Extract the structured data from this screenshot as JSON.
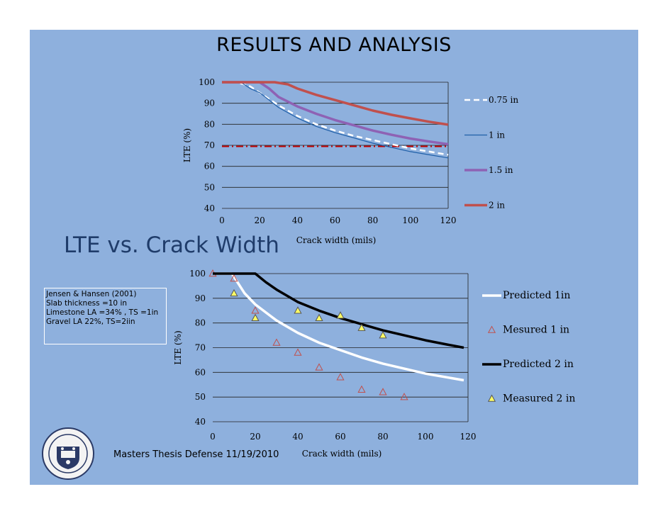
{
  "slide": {
    "title": "RESULTS AND ANALYSIS",
    "subtitle": "LTE vs. Crack Width",
    "citation": [
      "Jensen & Hansen (2001)",
      "Slab thickness =10 in",
      "Limestone  LA =34% , TS =1in",
      "Gravel LA 22%, TS=2iin"
    ],
    "footer": "Masters Thesis Defense 11/19/2010",
    "colors": {
      "background": "#8eb0dd",
      "title_text": "#1f3c6a"
    }
  },
  "chart_data": [
    {
      "type": "line",
      "xlabel": "Crack width (mils)",
      "ylabel": "LTE (%)",
      "xlim": [
        0,
        120
      ],
      "ylim": [
        40,
        100
      ],
      "xticks": [
        0,
        20,
        40,
        60,
        80,
        100,
        120
      ],
      "yticks": [
        40,
        50,
        60,
        70,
        80,
        90,
        100
      ],
      "grid": "horizontal",
      "legend_position": "right",
      "reference_line": {
        "y": 69.5,
        "color": "#c00000",
        "style": "dash-dot"
      },
      "series": [
        {
          "name": "0.75 in",
          "color": "#ffffff",
          "style": "dashed",
          "x": [
            0,
            8,
            15,
            20,
            30,
            40,
            50,
            60,
            70,
            80,
            90,
            100,
            110,
            120
          ],
          "y": [
            100,
            100,
            98,
            95,
            89,
            84,
            80,
            77,
            74.5,
            72.5,
            70.5,
            68.5,
            67,
            65.5
          ]
        },
        {
          "name": "1 in",
          "color": "#1f5fa8",
          "style": "solid",
          "x": [
            0,
            10,
            15,
            20,
            30,
            40,
            50,
            60,
            70,
            80,
            90,
            100,
            110,
            120
          ],
          "y": [
            100,
            100,
            97,
            95,
            88,
            83,
            79,
            76,
            73.5,
            71,
            69,
            67,
            65.5,
            64
          ]
        },
        {
          "name": "1.5 in",
          "color": "#8e62b4",
          "style": "solid",
          "x": [
            0,
            20,
            25,
            30,
            40,
            50,
            60,
            70,
            80,
            90,
            100,
            110,
            120
          ],
          "y": [
            100,
            100,
            97,
            93,
            88.5,
            85,
            82,
            79.5,
            77,
            75,
            73.2,
            71.8,
            70.5
          ]
        },
        {
          "name": "2 in",
          "color": "#c0504d",
          "style": "solid",
          "x": [
            0,
            28,
            35,
            40,
            50,
            60,
            70,
            80,
            90,
            100,
            110,
            120
          ],
          "y": [
            100,
            100,
            99,
            97,
            94,
            91.5,
            89,
            86.5,
            84.5,
            82.8,
            81.2,
            79.8
          ]
        }
      ]
    },
    {
      "type": "line",
      "xlabel": "Crack width (mils)",
      "ylabel": "LTE (%)",
      "xlim": [
        0,
        120
      ],
      "ylim": [
        40,
        100
      ],
      "xticks": [
        0,
        20,
        40,
        60,
        80,
        100,
        120
      ],
      "yticks": [
        40,
        50,
        60,
        70,
        80,
        90,
        100
      ],
      "grid": "horizontal",
      "legend_position": "right",
      "series": [
        {
          "name": "Predicted 1in",
          "color": "#ffffff",
          "kind": "line",
          "x": [
            0,
            9,
            12,
            15,
            20,
            30,
            40,
            50,
            60,
            70,
            80,
            90,
            100,
            110,
            118
          ],
          "y": [
            100,
            100,
            96,
            92,
            87.5,
            81,
            76,
            72,
            69,
            66,
            63.5,
            61.5,
            59.5,
            58,
            56.8
          ]
        },
        {
          "name": "Mesured 1 in",
          "color": "#c0504d",
          "kind": "marker",
          "x": [
            0,
            10,
            20,
            30,
            40,
            50,
            60,
            70,
            80,
            90
          ],
          "y": [
            100,
            98,
            85,
            72,
            68,
            62,
            58,
            53,
            52,
            50
          ]
        },
        {
          "name": "Predicted 2 in",
          "color": "#000000",
          "kind": "line",
          "x": [
            0,
            20,
            25,
            30,
            40,
            50,
            60,
            70,
            80,
            90,
            100,
            110,
            118
          ],
          "y": [
            100,
            100,
            96.5,
            93.5,
            88.5,
            85,
            82,
            79.5,
            77,
            75,
            73,
            71.3,
            70
          ]
        },
        {
          "name": "Measured 2 in",
          "color": "#ffff66",
          "kind": "marker",
          "x": [
            10,
            20,
            40,
            50,
            60,
            70,
            80
          ],
          "y": [
            92,
            82,
            85,
            82,
            83,
            78,
            75
          ]
        }
      ]
    }
  ]
}
